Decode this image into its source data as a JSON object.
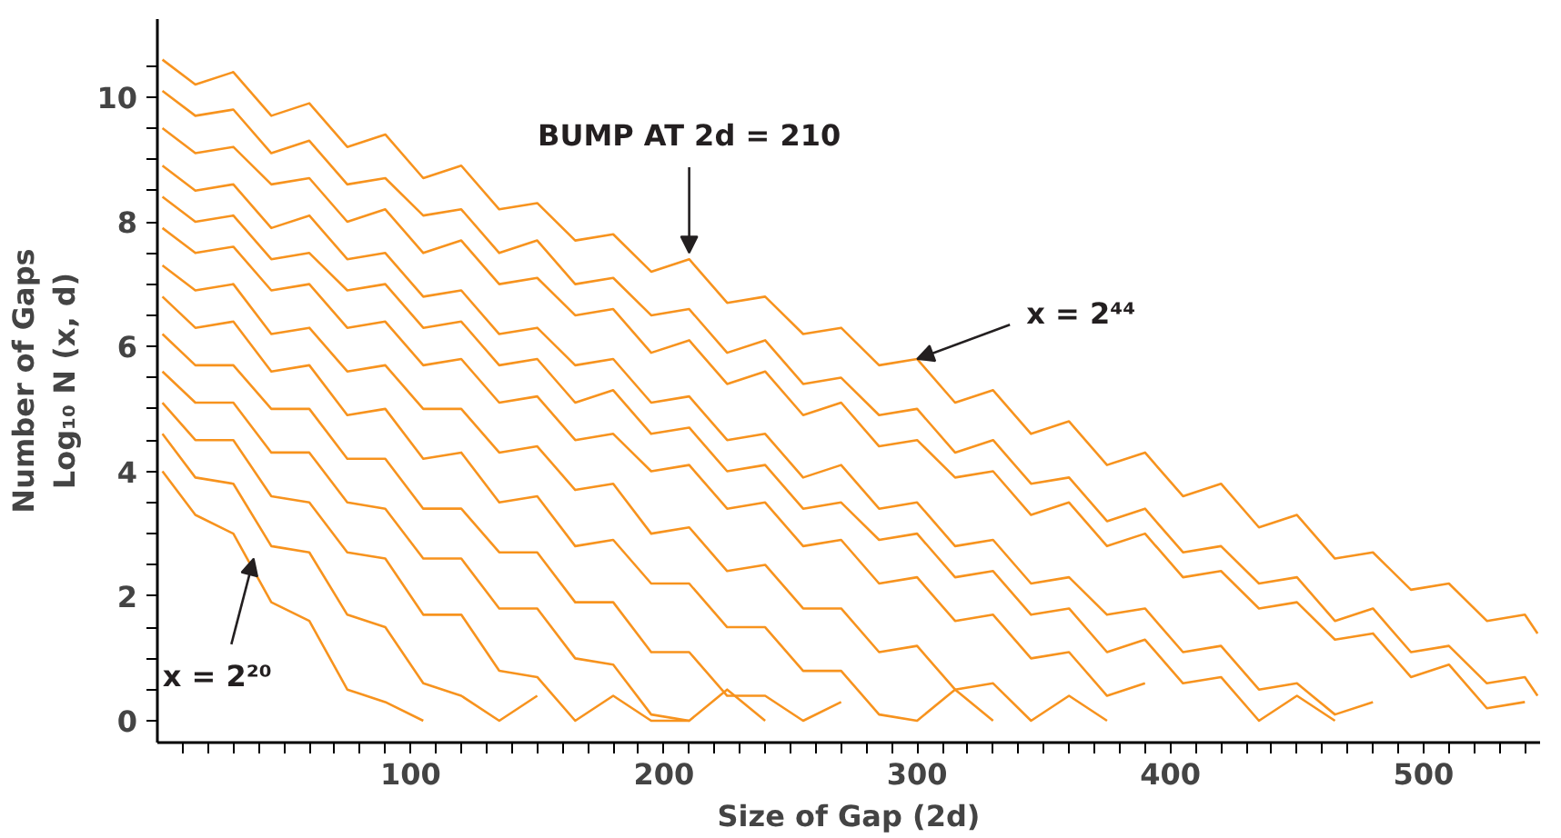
{
  "chart_data": {
    "type": "line",
    "xlabel": "Size of Gap (2d)",
    "ylabel": "Number of Gaps\nLog₁₀ N (x, d)",
    "x": [
      2,
      15,
      30,
      45,
      60,
      75,
      90,
      105,
      120,
      135,
      150,
      165,
      180,
      195,
      210,
      225,
      240,
      255,
      270,
      285,
      300,
      315,
      330,
      345,
      360,
      375,
      390,
      405,
      420,
      435,
      450,
      465,
      480,
      495,
      510,
      525,
      540,
      545
    ],
    "series": [
      {
        "color": "#f7931e",
        "values": [
          4.0,
          3.3,
          3.0,
          1.9,
          1.6,
          0.5,
          0.3,
          0.0,
          null,
          null,
          null,
          null,
          null,
          null,
          null,
          null,
          null,
          null,
          null,
          null,
          null,
          null,
          null,
          null,
          null,
          null,
          null,
          null,
          null,
          null,
          null,
          null,
          null,
          null,
          null,
          null,
          null,
          null
        ]
      },
      {
        "color": "#f7931e",
        "values": [
          4.6,
          3.9,
          3.8,
          2.8,
          2.7,
          1.7,
          1.5,
          0.6,
          0.4,
          0.0,
          0.4,
          null,
          null,
          null,
          null,
          null,
          null,
          null,
          null,
          null,
          null,
          null,
          null,
          null,
          null,
          null,
          null,
          null,
          null,
          null,
          null,
          null,
          null,
          null,
          null,
          null,
          null,
          null
        ]
      },
      {
        "color": "#f7931e",
        "values": [
          5.1,
          4.5,
          4.5,
          3.6,
          3.5,
          2.7,
          2.6,
          1.7,
          1.7,
          0.8,
          0.7,
          0.0,
          0.4,
          0.0,
          0.0,
          null,
          null,
          null,
          null,
          null,
          null,
          null,
          null,
          null,
          null,
          null,
          null,
          null,
          null,
          null,
          null,
          null,
          null,
          null,
          null,
          null,
          null,
          null
        ]
      },
      {
        "color": "#f7931e",
        "values": [
          5.6,
          5.1,
          5.1,
          4.3,
          4.3,
          3.5,
          3.4,
          2.6,
          2.6,
          1.8,
          1.8,
          1.0,
          0.9,
          0.1,
          0.0,
          0.5,
          0.0,
          null,
          null,
          null,
          null,
          null,
          null,
          null,
          null,
          null,
          null,
          null,
          null,
          null,
          null,
          null,
          null,
          null,
          null,
          null,
          null,
          null
        ]
      },
      {
        "color": "#f7931e",
        "values": [
          6.2,
          5.7,
          5.7,
          5.0,
          5.0,
          4.2,
          4.2,
          3.4,
          3.4,
          2.7,
          2.7,
          1.9,
          1.9,
          1.1,
          1.1,
          0.4,
          0.4,
          0.0,
          0.3,
          null,
          null,
          null,
          null,
          null,
          null,
          null,
          null,
          null,
          null,
          null,
          null,
          null,
          null,
          null,
          null,
          null,
          null,
          null
        ]
      },
      {
        "color": "#f7931e",
        "values": [
          6.8,
          6.3,
          6.4,
          5.6,
          5.7,
          4.9,
          5.0,
          4.2,
          4.3,
          3.5,
          3.6,
          2.8,
          2.9,
          2.2,
          2.2,
          1.5,
          1.5,
          0.8,
          0.8,
          0.1,
          0.0,
          0.5,
          0.0,
          null,
          null,
          null,
          null,
          null,
          null,
          null,
          null,
          null,
          null,
          null,
          null,
          null,
          null,
          null
        ]
      },
      {
        "color": "#f7931e",
        "values": [
          7.3,
          6.9,
          7.0,
          6.2,
          6.3,
          5.6,
          5.7,
          5.0,
          5.0,
          4.3,
          4.4,
          3.7,
          3.8,
          3.0,
          3.1,
          2.4,
          2.5,
          1.8,
          1.8,
          1.1,
          1.2,
          0.5,
          0.6,
          0.0,
          0.4,
          0.0,
          null,
          null,
          null,
          null,
          null,
          null,
          null,
          null,
          null,
          null,
          null,
          null
        ]
      },
      {
        "color": "#f7931e",
        "values": [
          7.9,
          7.5,
          7.6,
          6.9,
          7.0,
          6.3,
          6.4,
          5.7,
          5.8,
          5.1,
          5.2,
          4.5,
          4.6,
          4.0,
          4.1,
          3.4,
          3.5,
          2.8,
          2.9,
          2.2,
          2.3,
          1.6,
          1.7,
          1.0,
          1.1,
          0.4,
          0.6,
          null,
          null,
          null,
          null,
          null,
          null,
          null,
          null,
          null,
          null,
          null
        ]
      },
      {
        "color": "#f7931e",
        "values": [
          8.4,
          8.0,
          8.1,
          7.4,
          7.5,
          6.9,
          7.0,
          6.3,
          6.4,
          5.7,
          5.8,
          5.1,
          5.3,
          4.6,
          4.7,
          4.0,
          4.1,
          3.4,
          3.5,
          2.9,
          3.0,
          2.3,
          2.4,
          1.7,
          1.8,
          1.1,
          1.3,
          0.6,
          0.7,
          0.0,
          0.4,
          0.0,
          null,
          null,
          null,
          null,
          null,
          null
        ]
      },
      {
        "color": "#f7931e",
        "values": [
          8.9,
          8.5,
          8.6,
          7.9,
          8.1,
          7.4,
          7.5,
          6.8,
          6.9,
          6.2,
          6.3,
          5.7,
          5.8,
          5.1,
          5.2,
          4.5,
          4.6,
          3.9,
          4.1,
          3.4,
          3.5,
          2.8,
          2.9,
          2.2,
          2.3,
          1.7,
          1.8,
          1.1,
          1.2,
          0.5,
          0.6,
          0.1,
          0.3,
          null,
          null,
          null,
          null,
          null
        ]
      },
      {
        "color": "#f7931e",
        "values": [
          9.5,
          9.1,
          9.2,
          8.6,
          8.7,
          8.0,
          8.2,
          7.5,
          7.7,
          7.0,
          7.1,
          6.5,
          6.6,
          5.9,
          6.1,
          5.4,
          5.6,
          4.9,
          5.1,
          4.4,
          4.5,
          3.9,
          4.0,
          3.3,
          3.5,
          2.8,
          3.0,
          2.3,
          2.4,
          1.8,
          1.9,
          1.3,
          1.4,
          0.7,
          0.9,
          0.2,
          0.3,
          null
        ]
      },
      {
        "color": "#f7931e",
        "values": [
          10.1,
          9.7,
          9.8,
          9.1,
          9.3,
          8.6,
          8.7,
          8.1,
          8.2,
          7.5,
          7.7,
          7.0,
          7.1,
          6.5,
          6.6,
          5.9,
          6.1,
          5.4,
          5.5,
          4.9,
          5.0,
          4.3,
          4.5,
          3.8,
          3.9,
          3.2,
          3.4,
          2.7,
          2.8,
          2.2,
          2.3,
          1.6,
          1.8,
          1.1,
          1.2,
          0.6,
          0.7,
          0.4
        ]
      },
      {
        "color": "#f7931e",
        "values": [
          10.6,
          10.2,
          10.4,
          9.7,
          9.9,
          9.2,
          9.4,
          8.7,
          8.9,
          8.2,
          8.3,
          7.7,
          7.8,
          7.2,
          7.4,
          6.7,
          6.8,
          6.2,
          6.3,
          5.7,
          5.8,
          5.1,
          5.3,
          4.6,
          4.8,
          4.1,
          4.3,
          3.6,
          3.8,
          3.1,
          3.3,
          2.6,
          2.7,
          2.1,
          2.2,
          1.6,
          1.7,
          1.4
        ]
      }
    ],
    "xlim": [
      0,
      546
    ],
    "ylim": [
      -0.35,
      11.25
    ],
    "xticks": [
      {
        "value": 10,
        "label": null
      },
      {
        "value": 20,
        "label": null
      },
      {
        "value": 30,
        "label": null
      },
      {
        "value": 40,
        "label": null
      },
      {
        "value": 50,
        "label": null
      },
      {
        "value": 60,
        "label": null
      },
      {
        "value": 70,
        "label": null
      },
      {
        "value": 80,
        "label": null
      },
      {
        "value": 90,
        "label": null
      },
      100,
      {
        "value": 110,
        "label": null
      },
      {
        "value": 120,
        "label": null
      },
      {
        "value": 130,
        "label": null
      },
      {
        "value": 140,
        "label": null
      },
      {
        "value": 150,
        "label": null
      },
      {
        "value": 160,
        "label": null
      },
      {
        "value": 170,
        "label": null
      },
      {
        "value": 180,
        "label": null
      },
      {
        "value": 190,
        "label": null
      },
      200,
      {
        "value": 210,
        "label": null
      },
      {
        "value": 220,
        "label": null
      },
      {
        "value": 230,
        "label": null
      },
      {
        "value": 240,
        "label": null
      },
      {
        "value": 250,
        "label": null
      },
      {
        "value": 260,
        "label": null
      },
      {
        "value": 270,
        "label": null
      },
      {
        "value": 280,
        "label": null
      },
      {
        "value": 290,
        "label": null
      },
      300,
      {
        "value": 310,
        "label": null
      },
      {
        "value": 320,
        "label": null
      },
      {
        "value": 330,
        "label": null
      },
      {
        "value": 340,
        "label": null
      },
      {
        "value": 350,
        "label": null
      },
      {
        "value": 360,
        "label": null
      },
      {
        "value": 370,
        "label": null
      },
      {
        "value": 380,
        "label": null
      },
      {
        "value": 390,
        "label": null
      },
      400,
      {
        "value": 410,
        "label": null
      },
      {
        "value": 420,
        "label": null
      },
      {
        "value": 430,
        "label": null
      },
      {
        "value": 440,
        "label": null
      },
      {
        "value": 450,
        "label": null
      },
      {
        "value": 460,
        "label": null
      },
      {
        "value": 470,
        "label": null
      },
      {
        "value": 480,
        "label": null
      },
      {
        "value": 490,
        "label": null
      },
      500,
      {
        "value": 510,
        "label": null
      },
      {
        "value": 520,
        "label": null
      },
      {
        "value": 530,
        "label": null
      },
      {
        "value": 540,
        "label": null
      }
    ],
    "yticks": [
      0,
      {
        "value": 0.5,
        "label": null
      },
      {
        "value": 1,
        "label": null
      },
      {
        "value": 1.5,
        "label": null
      },
      2,
      {
        "value": 2.5,
        "label": null
      },
      {
        "value": 3,
        "label": null
      },
      {
        "value": 3.5,
        "label": null
      },
      4,
      {
        "value": 4.5,
        "label": null
      },
      {
        "value": 5,
        "label": null
      },
      {
        "value": 5.5,
        "label": null
      },
      6,
      {
        "value": 6.5,
        "label": null
      },
      {
        "value": 7,
        "label": null
      },
      {
        "value": 7.5,
        "label": null
      },
      8,
      {
        "value": 8.5,
        "label": null
      },
      {
        "value": 9,
        "label": null
      },
      {
        "value": 9.5,
        "label": null
      },
      10,
      {
        "value": 10.5,
        "label": null
      }
    ],
    "annotations": [
      {
        "text": "BUMP AT 2d = 210",
        "x": 210,
        "y": 7.5
      },
      {
        "text": "x = 2⁴⁴",
        "x": 300,
        "y": 5.8
      },
      {
        "text": "x = 2²⁰",
        "x": 38,
        "y": 2.6
      }
    ],
    "grid": false,
    "marker": "none",
    "line_style": "solid"
  }
}
